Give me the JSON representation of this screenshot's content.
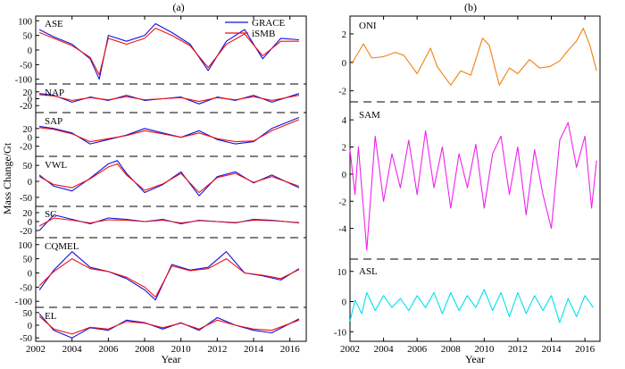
{
  "figure": {
    "panel_a_label": "(a)",
    "panel_b_label": "(b)",
    "colors": {
      "grace": "#1010dd",
      "ismb": "#ee1111",
      "oni": "#f08010",
      "sam": "#ee22ee",
      "asl": "#00e0ee"
    }
  },
  "chart_data": [
    {
      "type": "line",
      "panel": "(a)",
      "title": "",
      "xlabel": "Year",
      "ylabel": "Mass Change/Gt",
      "xlim": [
        2002,
        2016.9
      ],
      "x_ticks": [
        "2002",
        "2004",
        "2006",
        "2008",
        "2010",
        "2012",
        "2014",
        "2016"
      ],
      "legend": {
        "placement": "top-right",
        "entries": [
          "GRACE",
          "iSMB"
        ]
      },
      "subplots": [
        {
          "name": "ASE",
          "ylim": [
            -110,
            110
          ],
          "yticks": [
            "100",
            "50",
            "0",
            "-50",
            "-100"
          ],
          "x": [
            2002.2,
            2003,
            2004,
            2005,
            2005.5,
            2006,
            2007,
            2008,
            2008.6,
            2009.5,
            2010.5,
            2011.5,
            2012.5,
            2013.5,
            2014.5,
            2015.5,
            2016.5
          ],
          "series": [
            {
              "name": "GRACE",
              "values": [
                70,
                45,
                20,
                -30,
                -100,
                50,
                30,
                50,
                90,
                60,
                20,
                -70,
                30,
                70,
                -30,
                40,
                35
              ]
            },
            {
              "name": "iSMB",
              "values": [
                60,
                40,
                15,
                -25,
                -85,
                40,
                20,
                40,
                75,
                50,
                15,
                -60,
                20,
                55,
                -20,
                30,
                30
              ]
            }
          ]
        },
        {
          "name": "NAP",
          "ylim": [
            -35,
            35
          ],
          "yticks": [
            "20",
            "0",
            "-20"
          ],
          "x": [
            2002.2,
            2003,
            2004,
            2005,
            2006,
            2007,
            2008,
            2009,
            2010,
            2011,
            2012,
            2013,
            2014,
            2015,
            2016.5
          ],
          "series": [
            {
              "name": "GRACE",
              "values": [
                15,
                10,
                -10,
                5,
                -5,
                10,
                -5,
                0,
                5,
                -15,
                5,
                -5,
                10,
                -10,
                15
              ]
            },
            {
              "name": "iSMB",
              "values": [
                12,
                8,
                -5,
                3,
                -3,
                6,
                -3,
                0,
                3,
                -8,
                3,
                -3,
                6,
                -5,
                10
              ]
            }
          ]
        },
        {
          "name": "SAP",
          "ylim": [
            -35,
            50
          ],
          "yticks": [
            "20",
            "0",
            "-20"
          ],
          "x": [
            2002.2,
            2003,
            2004,
            2005,
            2006,
            2007,
            2008,
            2009,
            2010,
            2011,
            2012,
            2013,
            2014,
            2015,
            2016.5
          ],
          "series": [
            {
              "name": "GRACE",
              "values": [
                25,
                20,
                10,
                -15,
                -5,
                5,
                20,
                10,
                0,
                15,
                -5,
                -15,
                -10,
                20,
                45
              ]
            },
            {
              "name": "iSMB",
              "values": [
                22,
                18,
                8,
                -10,
                -3,
                4,
                15,
                8,
                0,
                10,
                -3,
                -10,
                -8,
                15,
                40
              ]
            }
          ]
        },
        {
          "name": "VWL",
          "ylim": [
            -70,
            70
          ],
          "yticks": [
            "50",
            "0",
            "-50"
          ],
          "x": [
            2002.2,
            2003,
            2004,
            2005,
            2006,
            2006.5,
            2007,
            2008,
            2009,
            2010,
            2011,
            2012,
            2013,
            2014,
            2015,
            2016.5
          ],
          "series": [
            {
              "name": "GRACE",
              "values": [
                20,
                -15,
                -30,
                10,
                55,
                65,
                25,
                -35,
                -10,
                30,
                -45,
                15,
                30,
                -5,
                20,
                -20
              ]
            },
            {
              "name": "iSMB",
              "values": [
                15,
                -10,
                -20,
                8,
                45,
                55,
                20,
                -28,
                -8,
                25,
                -35,
                12,
                25,
                -3,
                15,
                -15
              ]
            }
          ]
        },
        {
          "name": "SC",
          "ylim": [
            -30,
            30
          ],
          "yticks": [
            "20",
            "0",
            "-20"
          ],
          "x": [
            2002.2,
            2003,
            2004,
            2005,
            2006,
            2007,
            2008,
            2009,
            2010,
            2011,
            2012,
            2013,
            2014,
            2015,
            2016.5
          ],
          "series": [
            {
              "name": "GRACE",
              "values": [
                -20,
                15,
                5,
                -5,
                8,
                5,
                0,
                5,
                -5,
                3,
                0,
                -3,
                5,
                3,
                -3
              ]
            },
            {
              "name": "iSMB",
              "values": [
                -10,
                8,
                3,
                -3,
                4,
                3,
                0,
                3,
                -3,
                2,
                0,
                -2,
                3,
                2,
                -2
              ]
            }
          ]
        },
        {
          "name": "CQMEL",
          "ylim": [
            -115,
            115
          ],
          "yticks": [
            "100",
            "50",
            "0",
            "-50",
            "-100"
          ],
          "x": [
            2002.2,
            2003,
            2004,
            2005,
            2006,
            2007,
            2008,
            2008.6,
            2009.5,
            2010.5,
            2011.5,
            2012.5,
            2013.5,
            2014.5,
            2015.5,
            2016.5
          ],
          "series": [
            {
              "name": "GRACE",
              "values": [
                -60,
                10,
                75,
                20,
                5,
                -20,
                -60,
                -95,
                30,
                10,
                20,
                75,
                0,
                -10,
                -25,
                15
              ]
            },
            {
              "name": "iSMB",
              "values": [
                -45,
                5,
                50,
                15,
                5,
                -15,
                -50,
                -85,
                25,
                8,
                15,
                50,
                0,
                -8,
                -20,
                12
              ]
            }
          ]
        },
        {
          "name": "EL",
          "ylim": [
            -60,
            60
          ],
          "yticks": [
            "50",
            "0",
            "-50"
          ],
          "x": [
            2002.2,
            2003,
            2004,
            2005,
            2006,
            2007,
            2008,
            2009,
            2010,
            2011,
            2012,
            2013,
            2014,
            2015,
            2016.5
          ],
          "series": [
            {
              "name": "GRACE",
              "values": [
                45,
                -20,
                -50,
                -10,
                -20,
                20,
                10,
                -15,
                10,
                -20,
                30,
                0,
                -20,
                -30,
                25
              ]
            },
            {
              "name": "iSMB",
              "values": [
                35,
                -15,
                -35,
                -8,
                -15,
                15,
                8,
                -10,
                8,
                -15,
                20,
                0,
                -15,
                -20,
                20
              ]
            }
          ]
        }
      ]
    },
    {
      "type": "line",
      "panel": "(b)",
      "title": "",
      "xlabel": "Year",
      "ylabel": "",
      "xlim": [
        2002,
        2016.9
      ],
      "x_ticks": [
        "2002",
        "2004",
        "2006",
        "2008",
        "2010",
        "2012",
        "2014",
        "2016"
      ],
      "subplots": [
        {
          "name": "ONI",
          "ylim": [
            -2.4,
            3.0
          ],
          "yticks": [
            "2",
            "0",
            "-2"
          ],
          "x": [
            2002.1,
            2002.8,
            2003.3,
            2004.0,
            2004.7,
            2005.2,
            2005.7,
            2006.0,
            2006.8,
            2007.2,
            2008.0,
            2008.6,
            2009.2,
            2009.9,
            2010.3,
            2010.9,
            2011.5,
            2012.0,
            2012.7,
            2013.3,
            2013.9,
            2014.5,
            2014.9,
            2015.5,
            2015.9,
            2016.3,
            2016.7
          ],
          "series": [
            {
              "name": "ONI",
              "values": [
                -0.1,
                1.3,
                0.3,
                0.4,
                0.7,
                0.5,
                -0.3,
                -0.8,
                1.0,
                -0.3,
                -1.6,
                -0.6,
                -0.9,
                1.7,
                1.2,
                -1.6,
                -0.4,
                -0.8,
                0.2,
                -0.4,
                -0.3,
                0.1,
                0.7,
                1.5,
                2.4,
                1.2,
                -0.6
              ]
            }
          ]
        },
        {
          "name": "SAM",
          "ylim": [
            -6.0,
            4.8
          ],
          "yticks": [
            "4",
            "2",
            "0",
            "-2",
            "-4"
          ],
          "x": [
            2002.0,
            2002.3,
            2002.5,
            2003.0,
            2003.5,
            2004.0,
            2004.5,
            2005.0,
            2005.5,
            2006.0,
            2006.5,
            2007.0,
            2007.5,
            2008.0,
            2008.5,
            2009.0,
            2009.5,
            2010.0,
            2010.5,
            2011.0,
            2011.5,
            2012.0,
            2012.5,
            2013.0,
            2013.5,
            2014.0,
            2014.5,
            2015.0,
            2015.5,
            2016.0,
            2016.4,
            2016.7
          ],
          "series": [
            {
              "name": "SAM",
              "values": [
                1.8,
                -1.5,
                2.0,
                -5.6,
                2.8,
                -2.0,
                1.5,
                -1.0,
                2.5,
                -1.5,
                3.2,
                -1.0,
                2.0,
                -2.5,
                1.5,
                -1.0,
                2.2,
                -2.5,
                1.5,
                2.8,
                -1.5,
                2.0,
                -3.0,
                1.8,
                -1.5,
                -4.0,
                2.5,
                3.8,
                0.5,
                2.8,
                -2.5,
                1.0
              ]
            }
          ]
        },
        {
          "name": "ASL",
          "ylim": [
            -12,
            12
          ],
          "yticks": [
            "10",
            "0",
            "-10"
          ],
          "x": [
            2002.0,
            2002.3,
            2002.7,
            2003.0,
            2003.5,
            2004.0,
            2004.5,
            2005.0,
            2005.5,
            2006.0,
            2006.5,
            2007.0,
            2007.5,
            2008.0,
            2008.5,
            2009.0,
            2009.5,
            2010.0,
            2010.5,
            2011.0,
            2011.5,
            2012.0,
            2012.5,
            2013.0,
            2013.5,
            2014.0,
            2014.5,
            2015.0,
            2015.5,
            2016.0,
            2016.5
          ],
          "series": [
            {
              "name": "ASL",
              "values": [
                -6.5,
                0.5,
                -4,
                3,
                -3,
                2,
                -2,
                1,
                -3,
                2,
                -2,
                3,
                -4,
                3,
                -3,
                2,
                -2,
                4,
                -3,
                3,
                -5,
                3,
                -4,
                2,
                -3,
                2,
                -7,
                1,
                -5,
                2,
                -2
              ]
            }
          ]
        }
      ]
    }
  ]
}
